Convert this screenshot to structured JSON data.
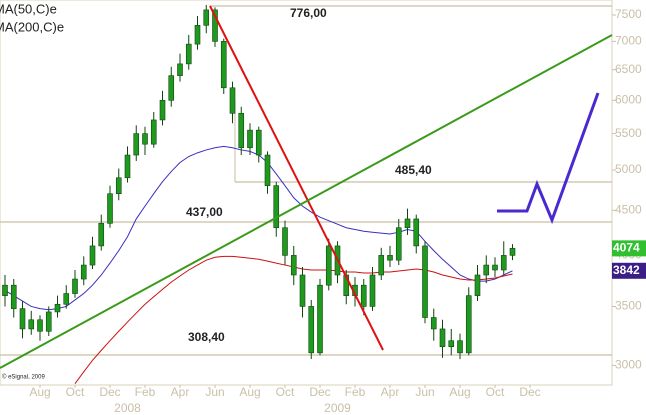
{
  "chart_data": {
    "type": "candlestick",
    "categories": [
      null,
      null,
      null,
      null,
      "Aug",
      null,
      null,
      null,
      "Oct",
      null,
      null,
      null,
      "Dec",
      null,
      null,
      null,
      "Feb",
      null,
      null,
      null,
      "Apr",
      null,
      null,
      null,
      "Jun",
      null,
      null,
      null,
      "Aug",
      null,
      null,
      null,
      "Oct",
      null,
      null,
      null,
      "Dec",
      null,
      null,
      null,
      "Feb",
      null,
      null,
      null,
      "Apr",
      null,
      null,
      null,
      "Jun",
      null,
      null,
      null,
      "Aug",
      null,
      null,
      null,
      "Oct",
      null,
      null,
      null,
      "Dec"
    ],
    "x_group_labels": [
      {
        "value": 14,
        "label": "2008"
      },
      {
        "value": 38,
        "label": "2009"
      }
    ],
    "open": [
      3600,
      3700,
      3480,
      3300,
      3380,
      3280,
      3450,
      3520,
      3620,
      3760,
      3900,
      4100,
      4350,
      4700,
      4900,
      5200,
      5500,
      5350,
      5700,
      6000,
      6400,
      6600,
      6950,
      7300,
      7600,
      7000,
      6200,
      5800,
      5300,
      5550,
      5200,
      4800,
      4300,
      4000,
      3800,
      3500,
      3100,
      3700,
      4100,
      3800,
      3600,
      3700,
      3500,
      3800,
      4000,
      3950,
      4300,
      4400,
      4100,
      3400,
      3300,
      3150,
      3200,
      3100,
      3600,
      3800,
      3900,
      3850,
      4000,
      null,
      null
    ],
    "high": [
      3800,
      3760,
      3550,
      3460,
      3420,
      3500,
      3600,
      3700,
      3850,
      3990,
      4200,
      4450,
      4800,
      5020,
      5320,
      5620,
      5600,
      5820,
      6150,
      6550,
      6780,
      7120,
      7480,
      7700,
      7650,
      7050,
      6300,
      5900,
      5650,
      5600,
      5250,
      4850,
      4380,
      4100,
      3880,
      3560,
      3760,
      4180,
      4150,
      3850,
      3780,
      3760,
      3880,
      4080,
      4100,
      4400,
      4520,
      4450,
      4150,
      3480,
      3380,
      3300,
      3260,
      3680,
      3900,
      4000,
      3980,
      4150,
      4120,
      null,
      null
    ],
    "low": [
      3500,
      3400,
      3220,
      3250,
      3200,
      3240,
      3400,
      3480,
      3580,
      3700,
      3860,
      4050,
      4300,
      4620,
      4840,
      5120,
      5200,
      5300,
      5620,
      5900,
      6300,
      6500,
      6850,
      7150,
      6900,
      6100,
      5650,
      5200,
      5200,
      5100,
      4700,
      4200,
      3900,
      3700,
      3400,
      3050,
      3080,
      3650,
      3720,
      3520,
      3500,
      3420,
      3460,
      3750,
      3880,
      3900,
      4220,
      4020,
      3350,
      3200,
      3060,
      3080,
      3050,
      3080,
      3550,
      3720,
      3780,
      3800,
      3950,
      null,
      null
    ],
    "close": [
      3700,
      3480,
      3300,
      3380,
      3280,
      3450,
      3520,
      3620,
      3760,
      3900,
      4100,
      4350,
      4700,
      4900,
      5200,
      5500,
      5350,
      5700,
      6000,
      6400,
      6600,
      6950,
      7300,
      7600,
      7000,
      6200,
      5800,
      5300,
      5550,
      5200,
      4800,
      4300,
      4000,
      3800,
      3500,
      3100,
      3700,
      4100,
      3800,
      3600,
      3700,
      3500,
      3800,
      4000,
      3950,
      4300,
      4400,
      4100,
      3400,
      3300,
      3150,
      3200,
      3100,
      3600,
      3800,
      3900,
      3850,
      4000,
      4074,
      null,
      null
    ],
    "candle_color": "#1f9a1f",
    "close_box_color": "#2fbf2f",
    "series": [
      {
        "name": "MA(50,C)e",
        "color": "#3a2fc0",
        "box_color": "#3b1f86",
        "values": [
          3650,
          3600,
          3550,
          3500,
          3480,
          3470,
          3480,
          3500,
          3560,
          3620,
          3700,
          3800,
          3920,
          4050,
          4200,
          4400,
          4550,
          4700,
          4850,
          4980,
          5100,
          5180,
          5230,
          5270,
          5300,
          5320,
          5300,
          5270,
          5250,
          5200,
          5100,
          4950,
          4800,
          4650,
          4550,
          4480,
          4420,
          4380,
          4340,
          4300,
          4280,
          4260,
          4250,
          4240,
          4230,
          4250,
          4280,
          4260,
          4150,
          4050,
          3960,
          3880,
          3800,
          3760,
          3740,
          3740,
          3760,
          3800,
          3842,
          null,
          null
        ]
      },
      {
        "name": "MA(200,C)e",
        "color": "#cc1111",
        "values": [
          null,
          null,
          null,
          null,
          null,
          null,
          null,
          null,
          2860,
          2950,
          3040,
          3120,
          3200,
          3280,
          3360,
          3440,
          3520,
          3590,
          3660,
          3730,
          3790,
          3850,
          3900,
          3950,
          3980,
          3990,
          3990,
          3980,
          3970,
          3960,
          3940,
          3920,
          3900,
          3880,
          3860,
          3850,
          3850,
          3850,
          3840,
          3830,
          3830,
          3820,
          3820,
          3830,
          3830,
          3840,
          3850,
          3860,
          3850,
          3830,
          3800,
          3780,
          3760,
          3750,
          3750,
          3760,
          3770,
          3790,
          3810,
          null,
          null
        ]
      }
    ],
    "annotations": [
      "776,00",
      "485,40",
      "437,00",
      "308,40"
    ],
    "source": "© eSignal, 2009",
    "log_scale": true,
    "ylim": [
      2850,
      7800
    ],
    "yticks": [
      3000,
      3500,
      4000,
      4500,
      5000,
      5500,
      6000,
      6500,
      7000,
      7500
    ]
  }
}
